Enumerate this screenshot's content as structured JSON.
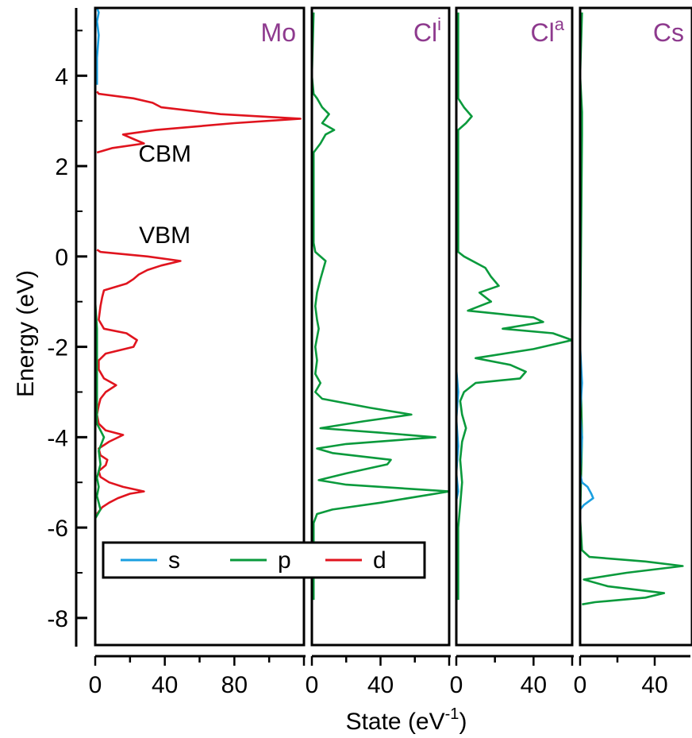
{
  "chart_data": {
    "type": "line",
    "title": "",
    "ylabel": "Energy (eV)",
    "xlabel_main": "State (eV",
    "xlabel_sup": "-1",
    "xlabel_tail": ")",
    "ylim": [
      -8.6,
      5.5
    ],
    "yticks": [
      4,
      2,
      0,
      -2,
      -4,
      -6,
      -8
    ],
    "legend": {
      "placement": "bottom-left",
      "entries": [
        {
          "name": "s",
          "color": "#1a9fe0"
        },
        {
          "name": "p",
          "color": "#0a9a3c"
        },
        {
          "name": "d",
          "color": "#e0141e"
        }
      ]
    },
    "annotations": [
      {
        "text": "CBM",
        "x": 40,
        "y": 2.1
      },
      {
        "text": "VBM",
        "x": 40,
        "y": 0.3
      }
    ],
    "panels": [
      {
        "title": "Mo",
        "title_sup": "",
        "xlim": [
          0,
          120
        ],
        "xticks": [
          0,
          40,
          80
        ],
        "series": [
          {
            "name": "d",
            "color": "#e0141e",
            "points": [
              [
                1,
                -5.7
              ],
              [
                4,
                -5.55
              ],
              [
                8,
                -5.45
              ],
              [
                13,
                -5.35
              ],
              [
                20,
                -5.25
              ],
              [
                28,
                -5.2
              ],
              [
                16,
                -5.1
              ],
              [
                8,
                -5.0
              ],
              [
                3,
                -4.88
              ],
              [
                2,
                -4.75
              ],
              [
                6,
                -4.62
              ],
              [
                7,
                -4.5
              ],
              [
                3,
                -4.4
              ],
              [
                2,
                -4.25
              ],
              [
                8,
                -4.1
              ],
              [
                16,
                -3.95
              ],
              [
                6,
                -3.85
              ],
              [
                2,
                -3.7
              ],
              [
                1,
                -3.5
              ],
              [
                2,
                -3.3
              ],
              [
                3,
                -3.15
              ],
              [
                6,
                -3.0
              ],
              [
                12,
                -2.85
              ],
              [
                5,
                -2.7
              ],
              [
                2,
                -2.5
              ],
              [
                2,
                -2.3
              ],
              [
                6,
                -2.15
              ],
              [
                22,
                -2.0
              ],
              [
                24,
                -1.85
              ],
              [
                18,
                -1.7
              ],
              [
                5,
                -1.6
              ],
              [
                2,
                -1.4
              ],
              [
                3,
                -1.1
              ],
              [
                4,
                -0.9
              ],
              [
                5,
                -0.75
              ],
              [
                18,
                -0.6
              ],
              [
                22,
                -0.5
              ],
              [
                25,
                -0.4
              ],
              [
                30,
                -0.3
              ],
              [
                38,
                -0.2
              ],
              [
                49,
                -0.1
              ],
              [
                30,
                0.0
              ],
              [
                3,
                0.1
              ],
              [
                1,
                0.15
              ]
            ]
          },
          {
            "name": "d_cb",
            "color": "#e0141e",
            "points": [
              [
                1,
                2.3
              ],
              [
                10,
                2.4
              ],
              [
                28,
                2.5
              ],
              [
                22,
                2.6
              ],
              [
                16,
                2.7
              ],
              [
                35,
                2.8
              ],
              [
                80,
                2.95
              ],
              [
                118,
                3.05
              ],
              [
                72,
                3.15
              ],
              [
                38,
                3.3
              ],
              [
                33,
                3.4
              ],
              [
                22,
                3.5
              ],
              [
                2,
                3.6
              ],
              [
                1,
                3.65
              ]
            ]
          },
          {
            "name": "p",
            "color": "#0a9a3c",
            "points": [
              [
                0,
                -5.8
              ],
              [
                3,
                -5.6
              ],
              [
                1,
                -5.3
              ],
              [
                2,
                -5.1
              ],
              [
                1,
                -4.9
              ],
              [
                3,
                -4.6
              ],
              [
                2,
                -4.3
              ],
              [
                5,
                -4.0
              ],
              [
                1,
                -3.7
              ],
              [
                1,
                -2.8
              ],
              [
                1,
                -2.2
              ],
              [
                1,
                -1.6
              ],
              [
                0,
                -1.0
              ],
              [
                0,
                0.2
              ],
              [
                0,
                2.2
              ],
              [
                0,
                3.7
              ],
              [
                0,
                5.4
              ]
            ]
          },
          {
            "name": "s",
            "color": "#1a9fe0",
            "points": [
              [
                1,
                3.8
              ],
              [
                1,
                4.4
              ],
              [
                2,
                4.9
              ],
              [
                1,
                5.2
              ],
              [
                2,
                5.4
              ],
              [
                1,
                5.5
              ]
            ]
          }
        ]
      },
      {
        "title": "Cl",
        "title_sup": "i",
        "xlim": [
          0,
          80
        ],
        "xticks": [
          0,
          40
        ],
        "series": [
          {
            "name": "p",
            "color": "#0a9a3c",
            "points": [
              [
                1,
                -7.6
              ],
              [
                1,
                -5.9
              ],
              [
                3,
                -5.7
              ],
              [
                12,
                -5.6
              ],
              [
                40,
                -5.45
              ],
              [
                80,
                -5.2
              ],
              [
                20,
                -5.05
              ],
              [
                4,
                -4.95
              ],
              [
                20,
                -4.8
              ],
              [
                44,
                -4.6
              ],
              [
                46,
                -4.5
              ],
              [
                12,
                -4.35
              ],
              [
                3,
                -4.25
              ],
              [
                20,
                -4.15
              ],
              [
                72,
                -4.0
              ],
              [
                40,
                -3.9
              ],
              [
                5,
                -3.8
              ],
              [
                30,
                -3.65
              ],
              [
                58,
                -3.5
              ],
              [
                34,
                -3.35
              ],
              [
                6,
                -3.15
              ],
              [
                2,
                -3.0
              ],
              [
                5,
                -2.8
              ],
              [
                2,
                -2.6
              ],
              [
                3,
                -2.3
              ],
              [
                2,
                -2.0
              ],
              [
                4,
                -1.6
              ],
              [
                3,
                -1.4
              ],
              [
                2,
                -1.1
              ],
              [
                3,
                -0.8
              ],
              [
                5,
                -0.5
              ],
              [
                8,
                -0.1
              ],
              [
                2,
                0.1
              ],
              [
                1,
                0.3
              ],
              [
                1,
                2.3
              ],
              [
                5,
                2.5
              ],
              [
                8,
                2.7
              ],
              [
                13,
                2.8
              ],
              [
                6,
                2.95
              ],
              [
                10,
                3.15
              ],
              [
                6,
                3.3
              ],
              [
                3,
                3.5
              ],
              [
                1,
                3.6
              ],
              [
                0,
                4.0
              ],
              [
                1,
                5.4
              ]
            ]
          }
        ]
      },
      {
        "title": "Cl",
        "title_sup": "a",
        "xlim": [
          0,
          60
        ],
        "xticks": [
          0,
          40
        ],
        "series": [
          {
            "name": "p",
            "color": "#0a9a3c",
            "points": [
              [
                1,
                -7.6
              ],
              [
                1,
                -6.0
              ],
              [
                2,
                -5.5
              ],
              [
                3,
                -5.0
              ],
              [
                2,
                -4.5
              ],
              [
                3,
                -4.1
              ],
              [
                5,
                -3.8
              ],
              [
                3,
                -3.5
              ],
              [
                2,
                -3.2
              ],
              [
                4,
                -3.0
              ],
              [
                10,
                -2.8
              ],
              [
                33,
                -2.7
              ],
              [
                36,
                -2.55
              ],
              [
                28,
                -2.4
              ],
              [
                10,
                -2.25
              ],
              [
                40,
                -2.05
              ],
              [
                60,
                -1.85
              ],
              [
                50,
                -1.7
              ],
              [
                24,
                -1.6
              ],
              [
                45,
                -1.45
              ],
              [
                40,
                -1.35
              ],
              [
                6,
                -1.2
              ],
              [
                18,
                -1.0
              ],
              [
                12,
                -0.8
              ],
              [
                22,
                -0.65
              ],
              [
                18,
                -0.45
              ],
              [
                15,
                -0.25
              ],
              [
                4,
                0.0
              ],
              [
                1,
                0.1
              ],
              [
                1,
                2.8
              ],
              [
                5,
                2.95
              ],
              [
                8,
                3.1
              ],
              [
                4,
                3.3
              ],
              [
                1,
                3.5
              ],
              [
                1,
                5.4
              ]
            ]
          },
          {
            "name": "s",
            "color": "#1a9fe0",
            "points": [
              [
                0,
                -5.4
              ],
              [
                1,
                -5.2
              ],
              [
                0,
                -4.8
              ],
              [
                1,
                -4.2
              ],
              [
                0,
                -3.6
              ],
              [
                1,
                -3.0
              ],
              [
                0,
                -2.5
              ]
            ]
          }
        ]
      },
      {
        "title": "Cs",
        "title_sup": "",
        "xlim": [
          0,
          60
        ],
        "xticks": [
          0,
          40
        ],
        "series": [
          {
            "name": "p",
            "color": "#0a9a3c",
            "points": [
              [
                1,
                -7.7
              ],
              [
                8,
                -7.65
              ],
              [
                35,
                -7.55
              ],
              [
                45,
                -7.45
              ],
              [
                15,
                -7.3
              ],
              [
                2,
                -7.15
              ],
              [
                25,
                -7.0
              ],
              [
                55,
                -6.85
              ],
              [
                35,
                -6.75
              ],
              [
                5,
                -6.65
              ],
              [
                1,
                -6.5
              ],
              [
                0,
                -5.8
              ],
              [
                1,
                -4.0
              ],
              [
                0,
                -2.0
              ],
              [
                1,
                2.7
              ],
              [
                1,
                3.2
              ],
              [
                0,
                4.0
              ],
              [
                1,
                5.4
              ]
            ]
          },
          {
            "name": "s",
            "color": "#1a9fe0",
            "points": [
              [
                0,
                -5.6
              ],
              [
                2,
                -5.5
              ],
              [
                7,
                -5.35
              ],
              [
                6,
                -5.25
              ],
              [
                4,
                -5.1
              ],
              [
                1,
                -5.0
              ],
              [
                0,
                -4.8
              ],
              [
                1,
                -4.0
              ],
              [
                0,
                -3.5
              ],
              [
                1,
                -2.8
              ],
              [
                0,
                -2.0
              ]
            ]
          }
        ]
      }
    ]
  }
}
